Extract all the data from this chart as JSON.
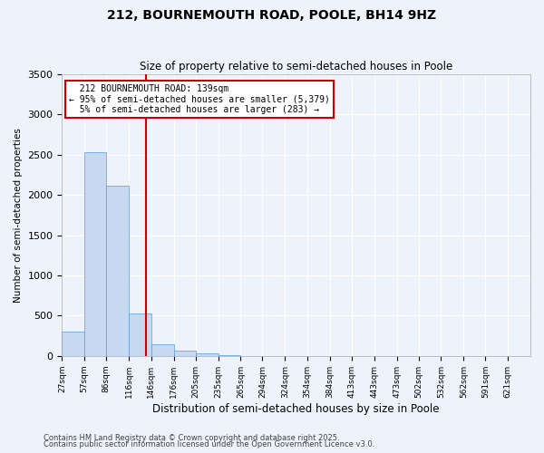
{
  "title": "212, BOURNEMOUTH ROAD, POOLE, BH14 9HZ",
  "subtitle": "Size of property relative to semi-detached houses in Poole",
  "xlabel": "Distribution of semi-detached houses by size in Poole",
  "ylabel": "Number of semi-detached properties",
  "bin_labels": [
    "27sqm",
    "57sqm",
    "86sqm",
    "116sqm",
    "146sqm",
    "176sqm",
    "205sqm",
    "235sqm",
    "265sqm",
    "294sqm",
    "324sqm",
    "354sqm",
    "384sqm",
    "413sqm",
    "443sqm",
    "473sqm",
    "502sqm",
    "532sqm",
    "562sqm",
    "591sqm",
    "621sqm"
  ],
  "bin_edges": [
    27,
    57,
    86,
    116,
    146,
    176,
    205,
    235,
    265,
    294,
    324,
    354,
    384,
    413,
    443,
    473,
    502,
    532,
    562,
    591,
    621
  ],
  "bar_values": [
    300,
    2530,
    2120,
    530,
    150,
    70,
    30,
    15,
    0,
    0,
    0,
    0,
    0,
    0,
    0,
    0,
    0,
    0,
    0,
    0
  ],
  "bar_color": "#c6d9f1",
  "bar_edge_color": "#5b9bd5",
  "property_size": 139,
  "property_label": "212 BOURNEMOUTH ROAD: 139sqm",
  "pct_smaller": 95,
  "n_smaller": 5379,
  "pct_larger": 5,
  "n_larger": 283,
  "vline_color": "#cc0000",
  "annotation_box_color": "#cc0000",
  "ylim": [
    0,
    3500
  ],
  "background_color": "#eef2fb",
  "footer1": "Contains HM Land Registry data © Crown copyright and database right 2025.",
  "footer2": "Contains public sector information licensed under the Open Government Licence v3.0."
}
